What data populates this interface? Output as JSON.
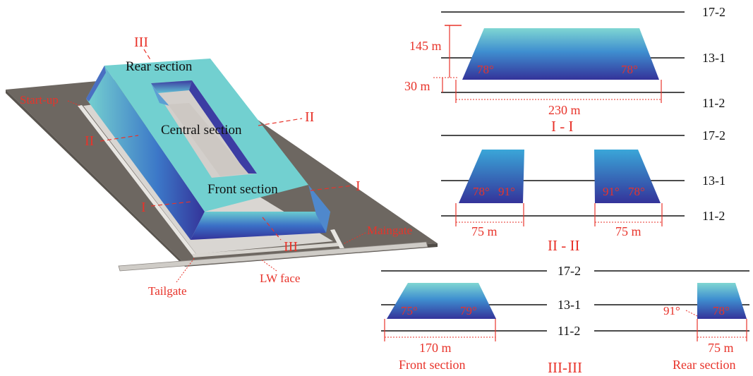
{
  "model_3d": {
    "labels": {
      "rear": "Rear section",
      "central": "Central section",
      "front": "Front section",
      "startup": "Start-up",
      "maingate": "Maingate",
      "tailgate": "Tailgate",
      "lwface": "LW face"
    },
    "section_marks": {
      "s3_top": "III",
      "s3_bottom": "III",
      "s2_left": "II",
      "s2_right": "II",
      "s1_left": "I",
      "s1_right": "I"
    }
  },
  "section_1": {
    "title": "I - I",
    "layers": [
      "17-2",
      "13-1",
      "11-2"
    ],
    "height_dim": "145 m",
    "gap_dim": "30 m",
    "width_dim": "230 m",
    "angle_left": "78°",
    "angle_right": "78°"
  },
  "section_2": {
    "title": "II - II",
    "layers": [
      "17-2",
      "13-1",
      "11-2"
    ],
    "left_block": {
      "angle_a": "78°",
      "angle_b": "91°",
      "width": "75 m"
    },
    "right_block": {
      "angle_a": "91°",
      "angle_b": "78°",
      "width": "75 m"
    }
  },
  "section_3": {
    "title": "III-III",
    "layers": [
      "17-2",
      "13-1",
      "11-2"
    ],
    "front": {
      "angle_left": "75°",
      "angle_right": "79°",
      "width": "170 m",
      "name": "Front section"
    },
    "rear": {
      "angle_left": "91°",
      "angle_right": "78°",
      "width": "75 m",
      "name": "Rear section"
    }
  },
  "colors": {
    "fill_top": "#72d0d0",
    "fill_bottom": "#35359a",
    "ground": "#6b655f",
    "accent": "#e8332a"
  }
}
